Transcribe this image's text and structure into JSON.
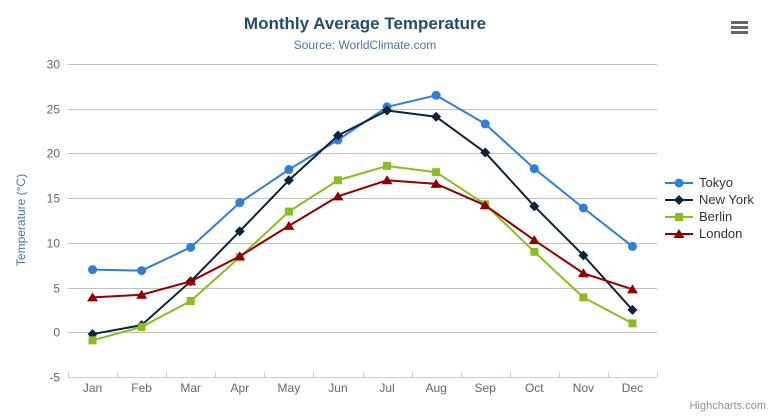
{
  "chart": {
    "title": "Monthly Average Temperature",
    "subtitle": "Source: WorldClimate.com",
    "credits": "Highcharts.com",
    "menu_icon": "hamburger-menu-icon"
  },
  "chart_data": {
    "type": "line",
    "title": "Monthly Average Temperature",
    "subtitle": "Source: WorldClimate.com",
    "categories": [
      "Jan",
      "Feb",
      "Mar",
      "Apr",
      "May",
      "Jun",
      "Jul",
      "Aug",
      "Sep",
      "Oct",
      "Nov",
      "Dec"
    ],
    "series": [
      {
        "name": "Tokyo",
        "color": "#2f7ed8",
        "marker": "circle",
        "values": [
          7.0,
          6.9,
          9.5,
          14.5,
          18.2,
          21.5,
          25.2,
          26.5,
          23.3,
          18.3,
          13.9,
          9.6
        ]
      },
      {
        "name": "New York",
        "color": "#0d233a",
        "marker": "diamond",
        "values": [
          -0.2,
          0.8,
          5.7,
          11.3,
          17.0,
          22.0,
          24.8,
          24.1,
          20.1,
          14.1,
          8.6,
          2.5
        ]
      },
      {
        "name": "Berlin",
        "color": "#8bbc21",
        "marker": "square",
        "values": [
          -0.9,
          0.6,
          3.5,
          8.4,
          13.5,
          17.0,
          18.6,
          17.9,
          14.3,
          9.0,
          3.9,
          1.0
        ]
      },
      {
        "name": "London",
        "color": "#910000",
        "marker": "triangle",
        "values": [
          3.9,
          4.2,
          5.7,
          8.5,
          11.9,
          15.2,
          17.0,
          16.6,
          14.2,
          10.3,
          6.6,
          4.8
        ]
      }
    ],
    "xlabel": "",
    "ylabel": "Temperature (°C)",
    "ylim": [
      -5,
      30
    ],
    "yticks": [
      30,
      25,
      20,
      15,
      10,
      5,
      0,
      -5
    ],
    "grid": true,
    "legend_position": "right"
  },
  "colors": {
    "grid": "#c0c0c0",
    "axis_line": "#c0d0e0",
    "axis_label": "#666666",
    "title": "#274b6d",
    "subtitle": "#4d759e",
    "axis_title": "#4d759e",
    "legend_text": "#333333",
    "credits": "#909090",
    "menu_icon": "#666666"
  }
}
